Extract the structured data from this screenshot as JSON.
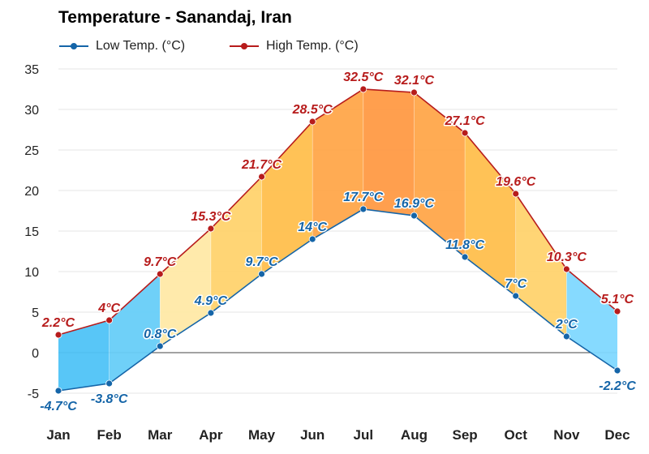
{
  "chart_data": {
    "type": "line",
    "title": "Temperature - Sanandaj, Iran",
    "categories": [
      "Jan",
      "Feb",
      "Mar",
      "Apr",
      "May",
      "Jun",
      "Jul",
      "Aug",
      "Sep",
      "Oct",
      "Nov",
      "Dec"
    ],
    "series": [
      {
        "name": "Low Temp. (°C)",
        "color": "#1565a8",
        "values": [
          -4.7,
          -3.8,
          0.8,
          4.9,
          9.7,
          14,
          17.7,
          16.9,
          11.8,
          7,
          2,
          -2.2
        ],
        "labels": [
          "-4.7°C",
          "-3.8°C",
          "0.8°C",
          "4.9°C",
          "9.7°C",
          "14°C",
          "17.7°C",
          "16.9°C",
          "11.8°C",
          "7°C",
          "2°C",
          "-2.2°C"
        ]
      },
      {
        "name": "High Temp. (°C)",
        "color": "#b71c1c",
        "values": [
          2.2,
          4,
          9.7,
          15.3,
          21.7,
          28.5,
          32.5,
          32.1,
          27.1,
          19.6,
          10.3,
          5.1
        ],
        "labels": [
          "2.2°C",
          "4°C",
          "9.7°C",
          "15.3°C",
          "21.7°C",
          "28.5°C",
          "32.5°C",
          "32.1°C",
          "27.1°C",
          "19.6°C",
          "10.3°C",
          "5.1°C"
        ]
      }
    ],
    "yticks": [
      "35",
      "30",
      "25",
      "20",
      "15",
      "10",
      "5",
      "0",
      "-5"
    ],
    "ylim": [
      -5,
      35
    ],
    "legend": "top-left",
    "grid": true,
    "band_colors": [
      "#4fc3f7",
      "#67cdf8",
      "#ffe9a6",
      "#ffd36e",
      "#ffbf4d",
      "#ffa64a",
      "#ff9a45",
      "#ffa64a",
      "#ffbf4d",
      "#ffd36e",
      "#80d8ff",
      "#4fc3f7"
    ]
  }
}
